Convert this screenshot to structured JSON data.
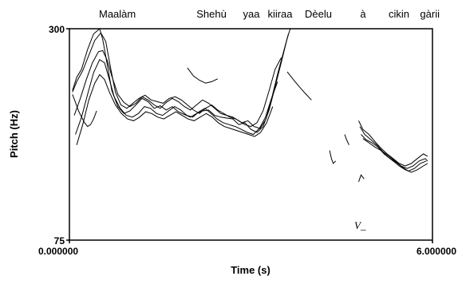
{
  "chart_data": {
    "type": "line",
    "title_words": [
      "Maalàm",
      "Shehù",
      "yaa",
      "kiiraa",
      "Dèelu",
      "à",
      "cikin",
      "gàrii"
    ],
    "xlabel": "Time (s)",
    "ylabel": "Pitch (Hz)",
    "y_scale": "log",
    "ylim": [
      75,
      300
    ],
    "y_ticks": [
      "300",
      "75"
    ],
    "x_tick_left": "0.000000",
    "x_tick_right": "6.000000",
    "xlim": [
      0,
      6
    ],
    "annotation": "V_",
    "line_color": "#000000",
    "grid": false,
    "series": [
      {
        "x": [
          0.05,
          0.12,
          0.2,
          0.3,
          0.4,
          0.5,
          0.55,
          0.62,
          0.7,
          0.8,
          0.9,
          1.0,
          1.1,
          1.2,
          1.3,
          1.4,
          1.5,
          1.6,
          1.7,
          1.8,
          1.9,
          2.0,
          2.1,
          2.2,
          2.3,
          2.4,
          2.5,
          2.6,
          2.7,
          2.8,
          2.9,
          3.0,
          3.1,
          3.2,
          3.3,
          3.4,
          3.5,
          3.6,
          3.65
        ],
        "y": [
          200,
          218,
          230,
          262,
          290,
          300,
          280,
          240,
          200,
          180,
          172,
          175,
          182,
          190,
          186,
          178,
          181,
          176,
          180,
          174,
          171,
          168,
          172,
          175,
          176,
          170,
          168,
          167,
          166,
          160,
          162,
          155,
          152,
          158,
          176,
          205,
          240,
          282,
          300
        ]
      },
      {
        "x": [
          0.05,
          0.12,
          0.22,
          0.32,
          0.42,
          0.52,
          0.6,
          0.68,
          0.76,
          0.85,
          0.95,
          1.05,
          1.15,
          1.25,
          1.35,
          1.45,
          1.55,
          1.65,
          1.75,
          1.85,
          1.95,
          2.05,
          2.15,
          2.25,
          2.35,
          2.45,
          2.55,
          2.65,
          2.75,
          2.85,
          2.95,
          3.05,
          3.15,
          3.25,
          3.35,
          3.45,
          3.55,
          3.62
        ],
        "y": [
          198,
          212,
          228,
          252,
          278,
          292,
          276,
          232,
          198,
          182,
          178,
          184,
          190,
          194,
          188,
          186,
          184,
          190,
          192,
          188,
          182,
          176,
          172,
          178,
          182,
          176,
          172,
          168,
          166,
          162,
          164,
          158,
          156,
          166,
          192,
          226,
          262,
          290
        ]
      },
      {
        "x": [
          0.08,
          0.18,
          0.28,
          0.38,
          0.48,
          0.55,
          0.62,
          0.7,
          0.8,
          0.9,
          1.0,
          1.1,
          1.2,
          1.3,
          1.4,
          1.5,
          1.6,
          1.7,
          1.8,
          1.9,
          2.0,
          2.1,
          2.2,
          2.3,
          2.4,
          2.5,
          2.6,
          2.7,
          2.8,
          2.9,
          3.0,
          3.1,
          3.2,
          3.3,
          3.4,
          3.5
        ],
        "y": [
          170,
          190,
          215,
          240,
          258,
          260,
          245,
          220,
          195,
          185,
          180,
          184,
          192,
          188,
          182,
          178,
          185,
          190,
          186,
          180,
          176,
          182,
          188,
          184,
          178,
          172,
          170,
          168,
          164,
          160,
          158,
          162,
          175,
          200,
          230,
          248
        ]
      },
      {
        "x": [
          0.1,
          0.2,
          0.3,
          0.4,
          0.5,
          0.58,
          0.66,
          0.74,
          0.84,
          0.94,
          1.04,
          1.14,
          1.24,
          1.34,
          1.44,
          1.54,
          1.64,
          1.74,
          1.84,
          1.94,
          2.04,
          2.14,
          2.24,
          2.34,
          2.44,
          2.54,
          2.64,
          2.74,
          2.84,
          2.94,
          3.04,
          3.14,
          3.24,
          3.34,
          3.44
        ],
        "y": [
          150,
          168,
          195,
          225,
          245,
          240,
          215,
          192,
          178,
          170,
          168,
          172,
          180,
          178,
          172,
          170,
          175,
          180,
          176,
          170,
          168,
          174,
          178,
          172,
          166,
          162,
          160,
          158,
          155,
          152,
          150,
          156,
          168,
          190,
          212
        ]
      },
      {
        "x": [
          0.12,
          0.22,
          0.32,
          0.42,
          0.5,
          0.58,
          0.66,
          0.76,
          0.86,
          0.96,
          1.06,
          1.16,
          1.26,
          1.36,
          1.46,
          1.56,
          1.66,
          1.76,
          1.86,
          1.96,
          2.06,
          2.16,
          2.26,
          2.36,
          2.46,
          2.56,
          2.66,
          2.76,
          2.86,
          2.96,
          3.06,
          3.16,
          3.26,
          3.36
        ],
        "y": [
          140,
          160,
          188,
          210,
          222,
          215,
          198,
          182,
          172,
          166,
          164,
          168,
          174,
          172,
          168,
          166,
          170,
          174,
          170,
          166,
          164,
          168,
          172,
          168,
          162,
          158,
          156,
          154,
          152,
          150,
          148,
          152,
          162,
          180
        ]
      },
      {
        "x": [
          0.05,
          0.1,
          0.15,
          0.2,
          0.25,
          0.3,
          0.35,
          0.4,
          0.45
        ],
        "y": [
          195,
          185,
          175,
          168,
          162,
          158,
          160,
          166,
          175
        ]
      },
      {
        "x": [
          1.95,
          2.05,
          2.15,
          2.25,
          2.35,
          2.45
        ],
        "y": [
          232,
          220,
          214,
          210,
          212,
          216
        ]
      },
      {
        "x": [
          3.6,
          3.7,
          3.8,
          3.9,
          4.0
        ],
        "y": [
          226,
          215,
          205,
          196,
          188
        ]
      },
      {
        "x": [
          4.3,
          4.33,
          4.36,
          4.4
        ],
        "y": [
          135,
          128,
          124,
          126
        ]
      },
      {
        "x": [
          4.55,
          4.58,
          4.62
        ],
        "y": [
          150,
          145,
          140
        ]
      },
      {
        "x": [
          4.78,
          4.82,
          4.87
        ],
        "y": [
          110,
          115,
          112
        ]
      },
      {
        "x": [
          4.78,
          4.85,
          4.95,
          5.05,
          5.15,
          5.25,
          5.35,
          5.45,
          5.55,
          5.65,
          5.75,
          5.85,
          5.92
        ],
        "y": [
          164,
          155,
          150,
          143,
          137,
          132,
          128,
          124,
          122,
          124,
          128,
          132,
          130
        ]
      },
      {
        "x": [
          4.8,
          4.88,
          4.98,
          5.08,
          5.18,
          5.28,
          5.38,
          5.48,
          5.58,
          5.68,
          5.78,
          5.88,
          5.92
        ],
        "y": [
          158,
          150,
          145,
          140,
          134,
          130,
          126,
          122,
          120,
          122,
          126,
          128,
          126
        ]
      },
      {
        "x": [
          4.82,
          4.9,
          5.0,
          5.1,
          5.2,
          5.3,
          5.4,
          5.5,
          5.6,
          5.7,
          5.8,
          5.9
        ],
        "y": [
          150,
          145,
          142,
          138,
          132,
          128,
          125,
          121,
          118,
          120,
          124,
          126
        ]
      },
      {
        "x": [
          4.85,
          4.95,
          5.05,
          5.15,
          5.25,
          5.35,
          5.45,
          5.55,
          5.65,
          5.75,
          5.85,
          5.92
        ],
        "y": [
          146,
          142,
          138,
          135,
          130,
          126,
          122,
          119,
          117,
          119,
          122,
          124
        ]
      }
    ]
  }
}
